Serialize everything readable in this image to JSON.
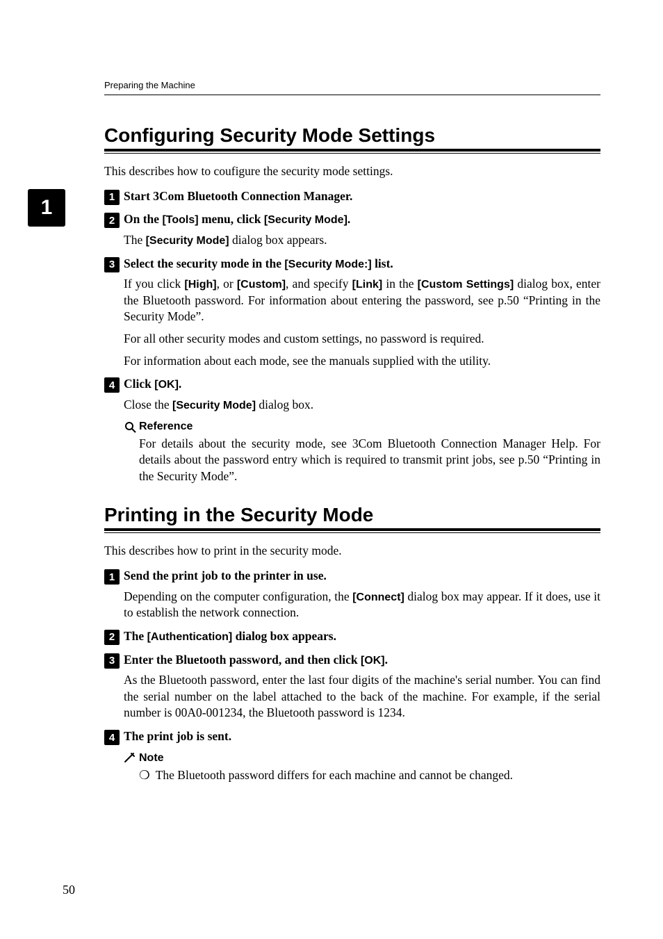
{
  "running_header": "Preparing the Machine",
  "side_tab": "1",
  "page_number": "50",
  "section1": {
    "title": "Configuring Security Mode Settings",
    "intro": "This describes how to coufigure the security mode settings.",
    "steps": [
      {
        "num": "1",
        "title_pre": "Start 3Com Bluetooth Connection Manager.",
        "body": []
      },
      {
        "num": "2",
        "title_parts": [
          "On the ",
          "[Tools]",
          " menu, click ",
          "[Security Mode]",
          "."
        ],
        "body_parts": [
          [
            "The ",
            "[Security Mode]",
            " dialog box appears."
          ]
        ]
      },
      {
        "num": "3",
        "title_parts": [
          "Select the security mode in the ",
          "[Security Mode:]",
          " list."
        ],
        "body_parts": [
          [
            "If you click ",
            "[High]",
            ", or ",
            "[Custom]",
            ", and specify ",
            "[Link]",
            " in the ",
            "[Custom Settings]",
            " dialog box, enter the Bluetooth password. For information about entering the password, see p.50 “Printing in the Security Mode”."
          ],
          [
            "For all other security modes and custom settings, no password is required."
          ],
          [
            "For information about each mode, see the manuals supplied with the utility."
          ]
        ]
      },
      {
        "num": "4",
        "title_parts": [
          "Click ",
          "[OK]",
          "."
        ],
        "body_parts": [
          [
            "Close the ",
            "[Security Mode]",
            " dialog box."
          ]
        ]
      }
    ],
    "reference": {
      "label": "Reference",
      "body": "For details about the security mode, see 3Com Bluetooth Connection Manager Help. For details about the password entry which is required to transmit print jobs, see p.50 “Printing in the Security Mode”."
    }
  },
  "section2": {
    "title": "Printing in the Security Mode",
    "intro": "This describes how to print in the security mode.",
    "steps": [
      {
        "num": "1",
        "title_parts": [
          "Send the print job to the printer in use."
        ],
        "body_parts": [
          [
            "Depending on the computer configuration, the ",
            "[Connect]",
            " dialog box may appear. If it does, use it to establish the network connection."
          ]
        ]
      },
      {
        "num": "2",
        "title_parts": [
          "The ",
          "[Authentication]",
          " dialog box appears."
        ],
        "body_parts": []
      },
      {
        "num": "3",
        "title_parts": [
          "Enter the Bluetooth password, and then click ",
          "[OK]",
          "."
        ],
        "body_parts": [
          [
            "As the Bluetooth password, enter the last four digits of the machine's serial number. You can find the serial number on the label attached to the back of the machine. For example, if the serial number is 00A0-001234, the Bluetooth password is 1234."
          ]
        ]
      },
      {
        "num": "4",
        "title_parts": [
          "The print job is sent."
        ],
        "body_parts": []
      }
    ],
    "note": {
      "label": "Note",
      "items": [
        "The Bluetooth password differs for each machine and cannot be changed."
      ]
    }
  }
}
